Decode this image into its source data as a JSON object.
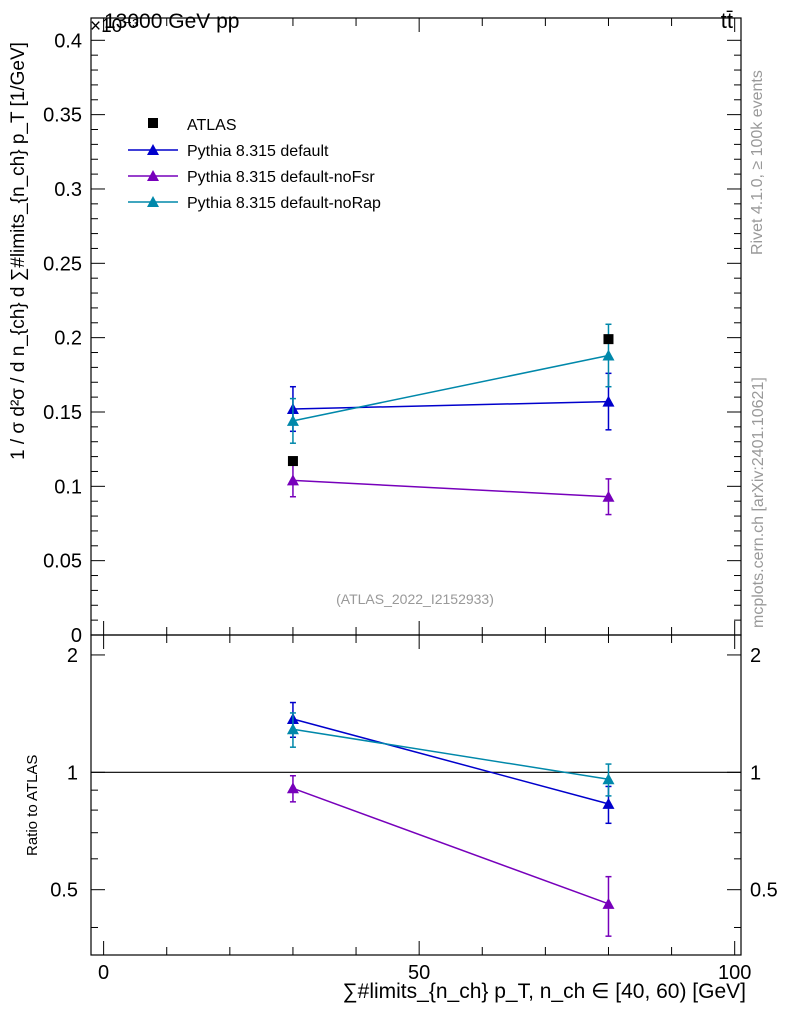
{
  "header": {
    "left_label": "13000 GeV pp",
    "right_label": "tt̄",
    "exponent_label": "×10⁻³"
  },
  "side_text": {
    "rivet": "Rivet 4.1.0, ≥ 100k events",
    "mcplots": "mcplots.cern.ch [arXiv:2401.10621]"
  },
  "analysis_id": "(ATLAS_2022_I2152933)",
  "chart_data": {
    "type": "scatter",
    "title": "13000 GeV pp",
    "xlabel": "∑#limits_{n_ch} p_T, n_ch ∈ [40, 60) [GeV]",
    "ylabel": "1 / σ d²σ / d n_{ch} d ∑#limits_{n_ch} p_T [1/GeV]",
    "ratio_ylabel": "Ratio to ATLAS",
    "xlim": [
      -2,
      101
    ],
    "ylim": [
      0,
      0.415
    ],
    "y_scale_note": "×10⁻³",
    "ratio_ylim": [
      0.34,
      2.25
    ],
    "x_ticks": [
      0,
      50,
      100
    ],
    "y_ticks": [
      0,
      0.05,
      0.1,
      0.15,
      0.2,
      0.25,
      0.3,
      0.35,
      0.4
    ],
    "y_tick_labels": [
      "0",
      "0.05",
      "0.1",
      "0.15",
      "0.2",
      "0.25",
      "0.3",
      "0.35",
      "0.4"
    ],
    "ratio_ticks": [
      0.5,
      1,
      2
    ],
    "ratio_tick_labels": [
      "0.5",
      "1",
      "2"
    ],
    "legend_position": "top-left",
    "reference": {
      "name": "ATLAS",
      "color": "#000000",
      "x": [
        30,
        80
      ],
      "y": [
        0.117,
        0.199
      ]
    },
    "series": [
      {
        "name": "Pythia 8.315 default",
        "color": "#0000cc",
        "x": [
          30,
          80
        ],
        "y": [
          0.152,
          0.157
        ],
        "yerr": [
          0.015,
          0.019
        ],
        "ratio": [
          1.37,
          0.83
        ],
        "ratio_err": [
          0.14,
          0.09
        ]
      },
      {
        "name": "Pythia 8.315 default-noFsr",
        "color": "#7700bb",
        "x": [
          30,
          80
        ],
        "y": [
          0.104,
          0.093
        ],
        "yerr": [
          0.011,
          0.012
        ],
        "ratio": [
          0.91,
          0.46
        ],
        "ratio_err": [
          0.07,
          0.08
        ]
      },
      {
        "name": "Pythia 8.315 default-noRap",
        "color": "#0088aa",
        "x": [
          30,
          80
        ],
        "y": [
          0.144,
          0.188
        ],
        "yerr": [
          0.015,
          0.021
        ],
        "ratio": [
          1.29,
          0.96
        ],
        "ratio_err": [
          0.13,
          0.09
        ]
      }
    ]
  }
}
